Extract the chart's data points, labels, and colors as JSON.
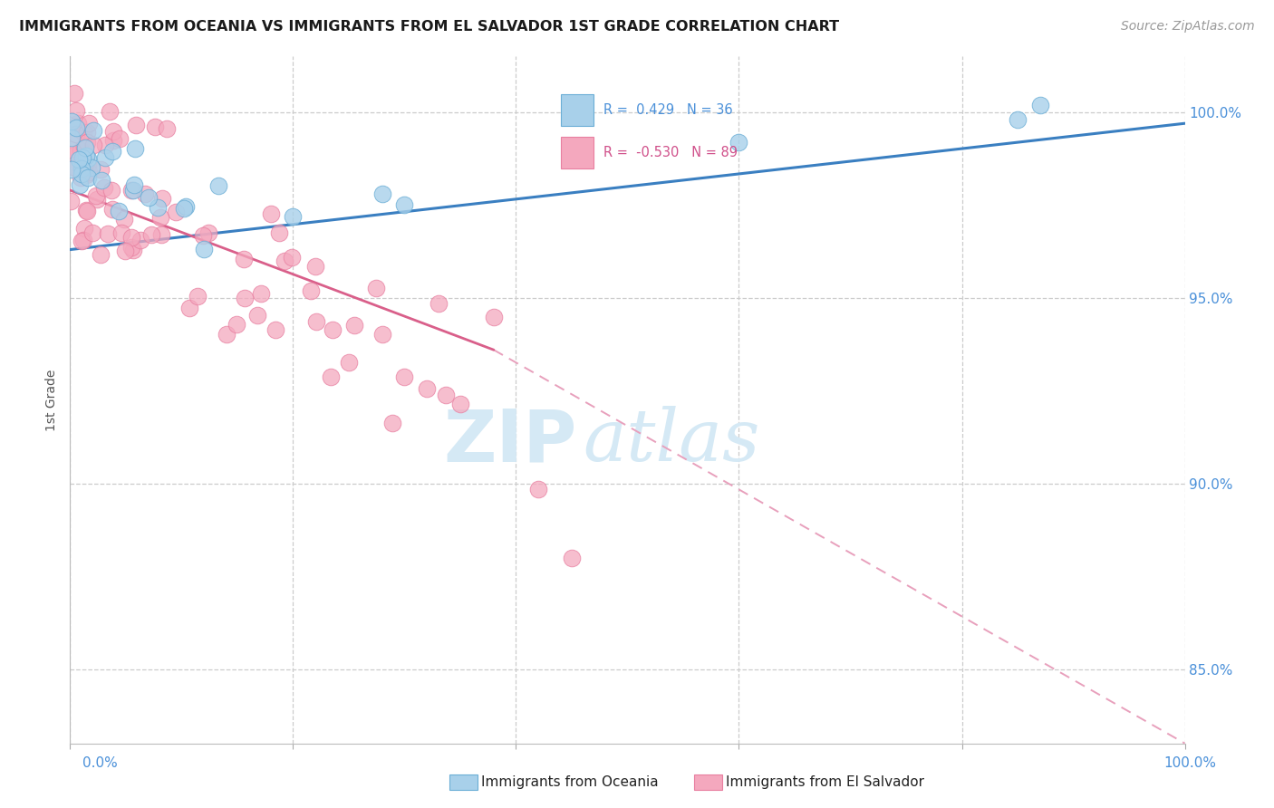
{
  "title": "IMMIGRANTS FROM OCEANIA VS IMMIGRANTS FROM EL SALVADOR 1ST GRADE CORRELATION CHART",
  "source": "Source: ZipAtlas.com",
  "ylabel": "1st Grade",
  "legend_oceania": "Immigrants from Oceania",
  "legend_salvador": "Immigrants from El Salvador",
  "R_oceania": 0.429,
  "N_oceania": 36,
  "R_salvador": -0.53,
  "N_salvador": 89,
  "oceania_color": "#a8d0ea",
  "oceania_edge": "#6baed6",
  "salvador_color": "#f4a8be",
  "salvador_edge": "#e87fa0",
  "trend_oceania_color": "#3a7fc1",
  "trend_salvador_solid_color": "#d95f8a",
  "trend_salvador_dashed_color": "#e8a0bc",
  "background_color": "#ffffff",
  "grid_color": "#cccccc",
  "ytick_color": "#4a90d9",
  "xtick_color": "#4a90d9",
  "xlim": [
    0.0,
    1.0
  ],
  "ylim": [
    0.83,
    1.015
  ],
  "ytick_vals": [
    0.85,
    0.9,
    0.95,
    1.0
  ],
  "ytick_labels": [
    "85.0%",
    "90.0%",
    "95.0%",
    "100.0%"
  ],
  "watermark_color": "#d5e9f5",
  "title_fontsize": 11.5,
  "source_fontsize": 10,
  "legend_fontsize": 11
}
